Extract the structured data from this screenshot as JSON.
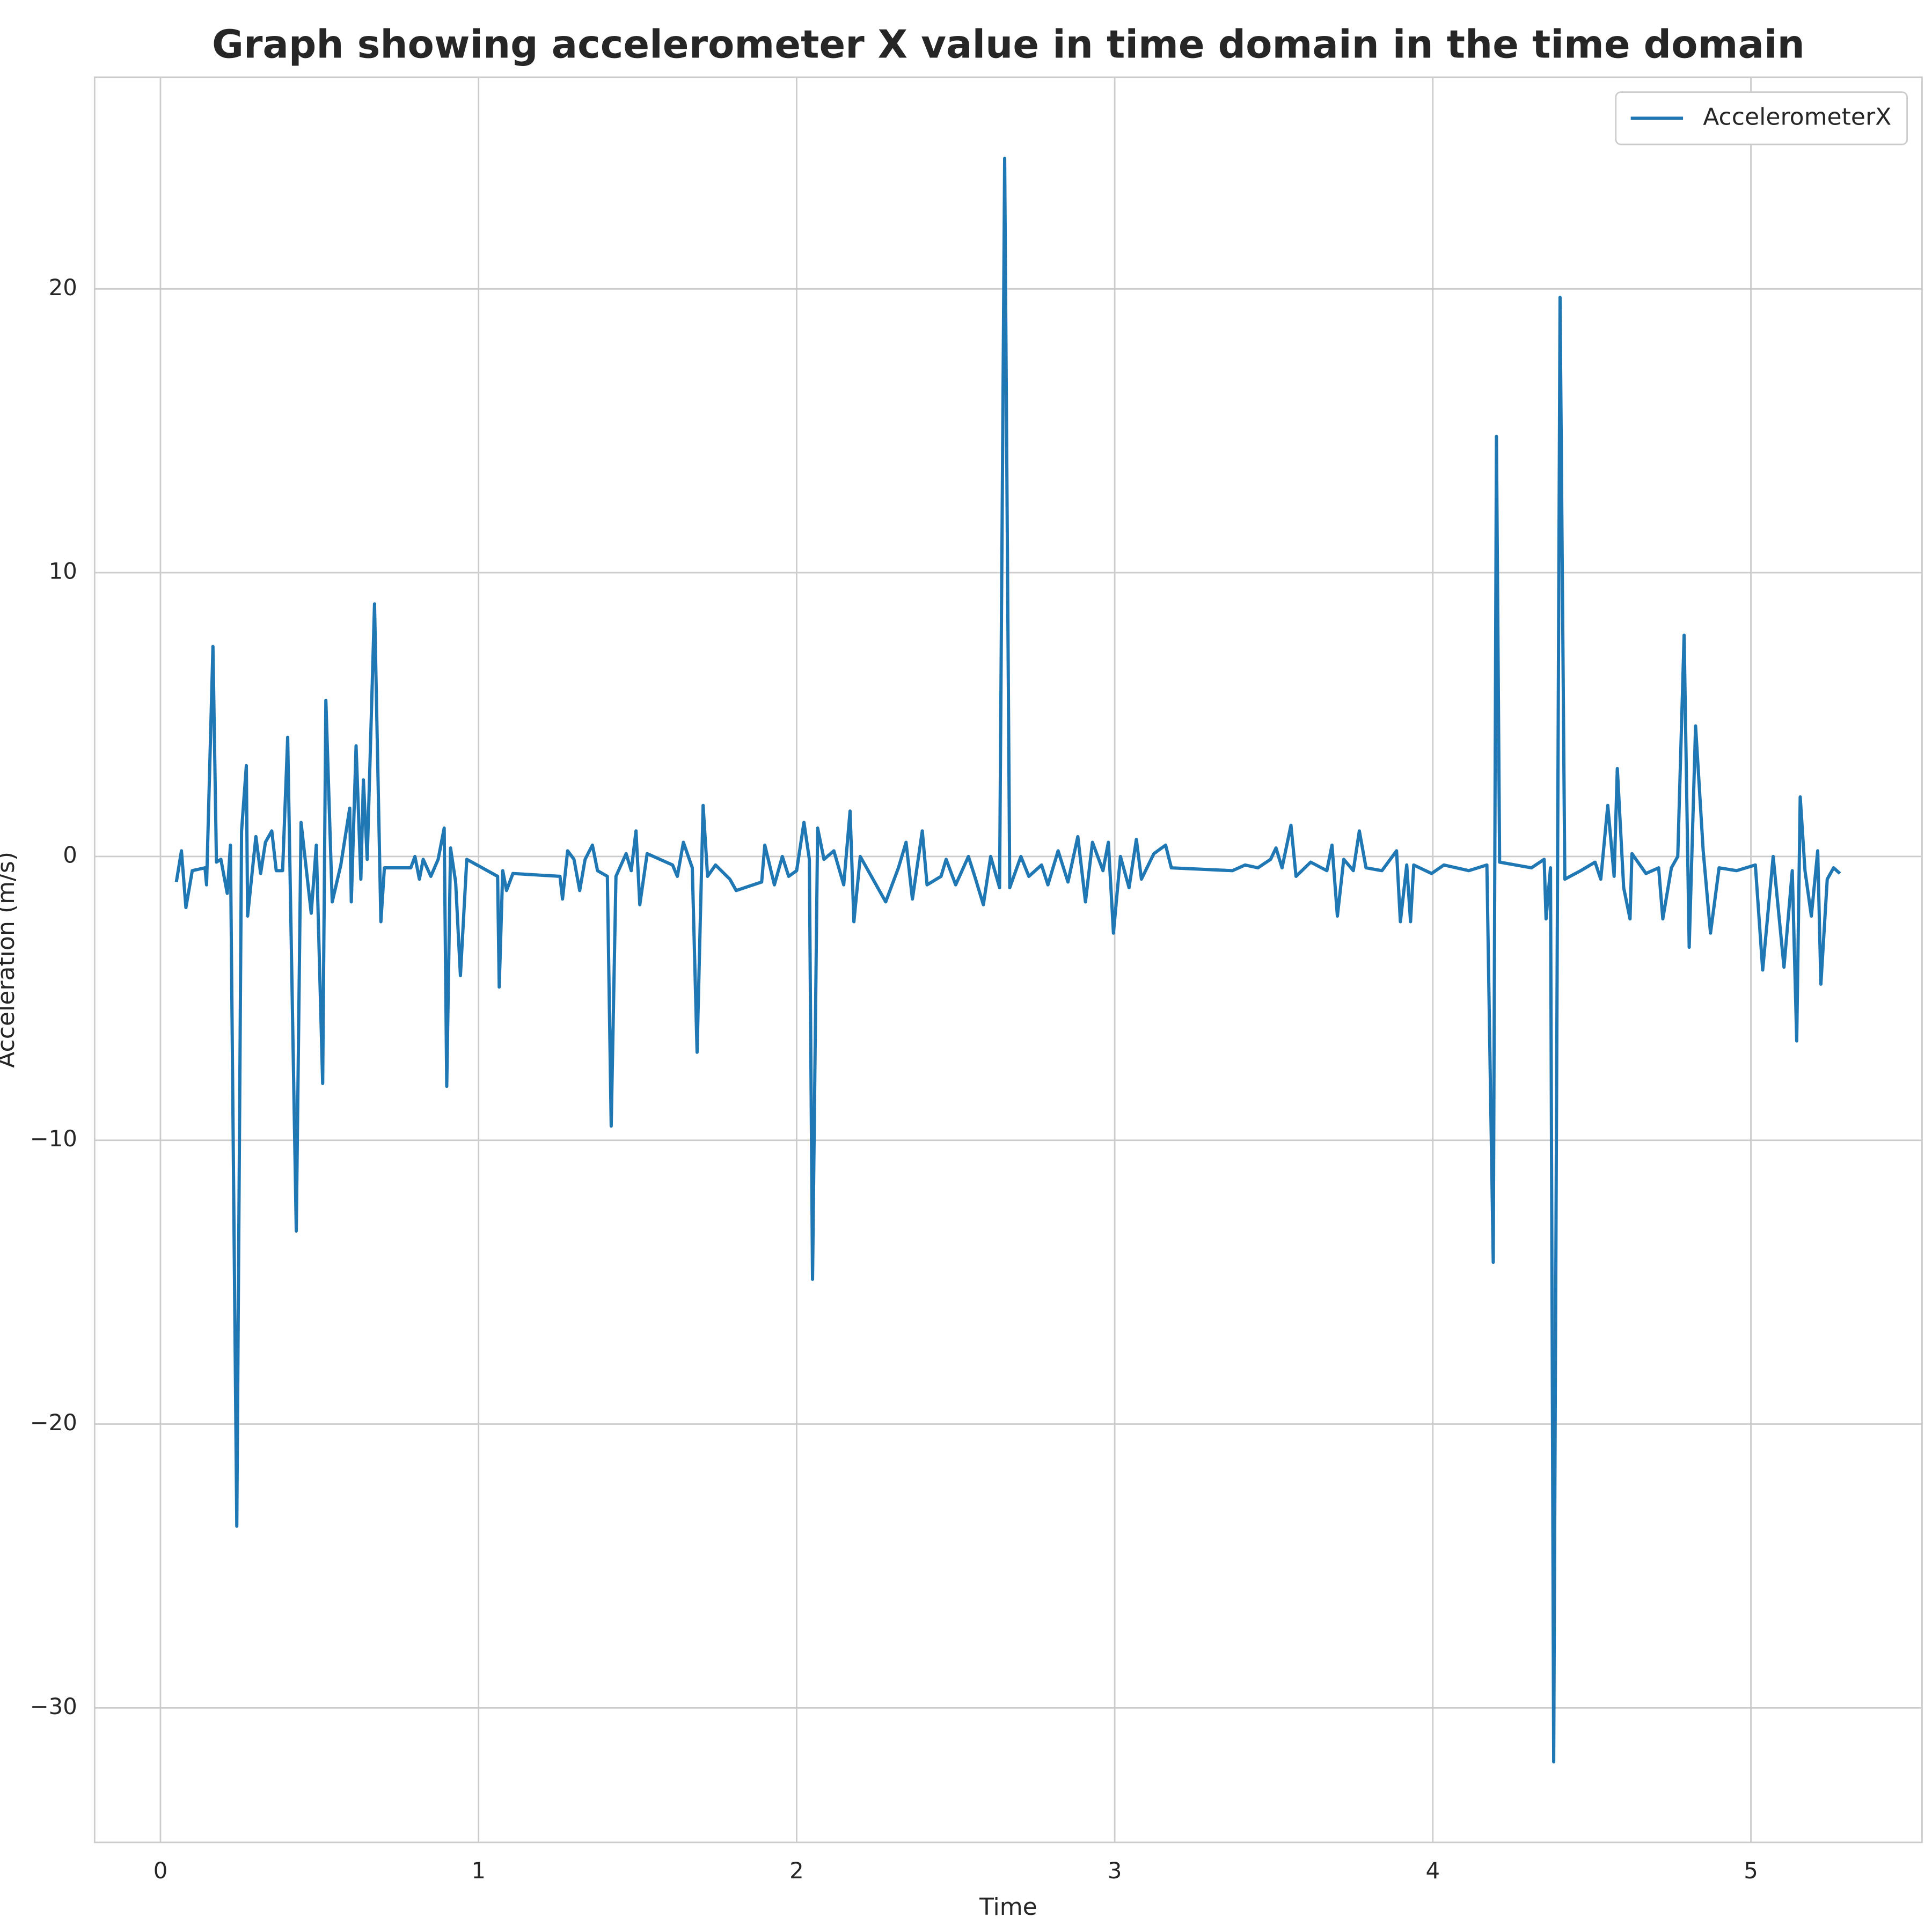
{
  "chart_data": {
    "type": "line",
    "title": "Graph showing accelerometer X value in time domain in the time domain",
    "x_label": "Time",
    "y_label": "Acceleration (m/s)",
    "x": [
      0.05,
      0.066,
      0.08,
      0.1,
      0.14,
      0.145,
      0.165,
      0.176,
      0.19,
      0.21,
      0.22,
      0.24,
      0.255,
      0.27,
      0.274,
      0.3,
      0.315,
      0.33,
      0.35,
      0.364,
      0.384,
      0.4,
      0.427,
      0.442,
      0.474,
      0.49,
      0.51,
      0.52,
      0.54,
      0.567,
      0.595,
      0.6,
      0.615,
      0.63,
      0.638,
      0.65,
      0.673,
      0.693,
      0.704,
      0.787,
      0.8,
      0.814,
      0.826,
      0.85,
      0.873,
      0.892,
      0.9,
      0.912,
      0.928,
      0.943,
      0.963,
      1.06,
      1.065,
      1.076,
      1.088,
      1.108,
      1.256,
      1.264,
      1.28,
      1.3,
      1.318,
      1.335,
      1.358,
      1.374,
      1.405,
      1.417,
      1.432,
      1.464,
      1.48,
      1.495,
      1.507,
      1.53,
      1.61,
      1.625,
      1.644,
      1.672,
      1.687,
      1.706,
      1.72,
      1.745,
      1.772,
      1.79,
      1.81,
      1.89,
      1.9,
      1.93,
      1.955,
      1.975,
      2.0,
      2.023,
      2.04,
      2.05,
      2.066,
      2.086,
      2.117,
      2.148,
      2.168,
      2.18,
      2.2,
      2.28,
      2.32,
      2.344,
      2.364,
      2.395,
      2.41,
      2.454,
      2.47,
      2.5,
      2.54,
      2.56,
      2.587,
      2.61,
      2.638,
      2.654,
      2.67,
      2.705,
      2.73,
      2.77,
      2.79,
      2.822,
      2.853,
      2.884,
      2.908,
      2.93,
      2.963,
      2.98,
      2.996,
      3.018,
      3.045,
      3.068,
      3.084,
      3.123,
      3.16,
      3.178,
      3.37,
      3.41,
      3.45,
      3.49,
      3.507,
      3.526,
      3.554,
      3.57,
      3.616,
      3.667,
      3.683,
      3.7,
      3.72,
      3.75,
      3.769,
      3.79,
      3.84,
      3.886,
      3.898,
      3.918,
      3.93,
      3.94,
      3.996,
      4.035,
      4.113,
      4.17,
      4.19,
      4.2,
      4.21,
      4.31,
      4.35,
      4.356,
      4.37,
      4.38,
      4.4,
      4.415,
      4.465,
      4.51,
      4.528,
      4.55,
      4.57,
      4.58,
      4.6,
      4.62,
      4.626,
      4.67,
      4.71,
      4.723,
      4.75,
      4.77,
      4.79,
      4.806,
      4.826,
      4.85,
      4.873,
      4.9,
      4.955,
      5.014,
      5.037,
      5.07,
      5.104,
      5.13,
      5.144,
      5.155,
      5.17,
      5.19,
      5.21,
      5.22,
      5.24,
      5.26,
      5.28
    ],
    "series": [
      {
        "name": "AccelerometerX",
        "color": "#1f77b4",
        "values": [
          -0.9,
          0.2,
          -1.8,
          -0.5,
          -0.4,
          -1.0,
          7.4,
          -0.2,
          -0.1,
          -1.3,
          0.4,
          -23.6,
          0.9,
          3.2,
          -2.1,
          0.7,
          -0.6,
          0.5,
          0.9,
          -0.5,
          -0.5,
          4.2,
          -13.2,
          1.2,
          -2.0,
          0.4,
          -8.0,
          5.5,
          -1.6,
          -0.3,
          1.7,
          -1.6,
          3.9,
          -0.8,
          2.7,
          -0.1,
          8.9,
          -2.3,
          -0.4,
          -0.4,
          0.0,
          -0.8,
          -0.1,
          -0.7,
          -0.1,
          1.0,
          -8.1,
          0.3,
          -0.9,
          -4.2,
          -0.1,
          -0.7,
          -4.6,
          -0.5,
          -1.2,
          -0.6,
          -0.7,
          -1.5,
          0.2,
          -0.1,
          -1.2,
          -0.1,
          0.4,
          -0.5,
          -0.7,
          -9.5,
          -0.7,
          0.1,
          -0.5,
          0.9,
          -1.7,
          0.1,
          -0.3,
          -0.7,
          0.5,
          -0.4,
          -6.9,
          1.8,
          -0.7,
          -0.3,
          -0.6,
          -0.8,
          -1.2,
          -0.9,
          0.4,
          -1.0,
          0.0,
          -0.7,
          -0.5,
          1.2,
          -0.1,
          -14.9,
          1.0,
          -0.1,
          0.2,
          -1.0,
          1.6,
          -2.3,
          0.0,
          -1.6,
          -0.4,
          0.5,
          -1.5,
          0.9,
          -1.0,
          -0.7,
          -0.1,
          -1.0,
          0.0,
          -0.7,
          -1.7,
          0.0,
          -1.1,
          24.6,
          -1.1,
          0.0,
          -0.7,
          -0.3,
          -1.0,
          0.2,
          -0.9,
          0.7,
          -1.6,
          0.5,
          -0.5,
          0.5,
          -2.7,
          0.0,
          -1.1,
          0.6,
          -0.8,
          0.1,
          0.4,
          -0.4,
          -0.5,
          -0.3,
          -0.4,
          -0.1,
          0.3,
          -0.4,
          1.1,
          -0.7,
          -0.2,
          -0.5,
          0.4,
          -2.1,
          -0.1,
          -0.5,
          0.9,
          -0.4,
          -0.5,
          0.2,
          -2.3,
          -0.3,
          -2.3,
          -0.3,
          -0.6,
          -0.3,
          -0.5,
          -0.3,
          -14.3,
          14.8,
          -0.2,
          -0.4,
          -0.1,
          -2.2,
          -0.4,
          -31.9,
          19.7,
          -0.8,
          -0.5,
          -0.2,
          -0.8,
          1.8,
          -0.7,
          3.1,
          -1.1,
          -2.2,
          0.1,
          -0.6,
          -0.4,
          -2.2,
          -0.4,
          0.0,
          7.8,
          -3.2,
          4.6,
          0.2,
          -2.7,
          -0.4,
          -0.5,
          -0.3,
          -4.0,
          0.0,
          -3.9,
          -0.5,
          -6.5,
          2.1,
          -0.5,
          -2.1,
          0.2,
          -4.5,
          -0.8,
          -0.4,
          -0.6
        ]
      }
    ],
    "xlim": [
      -0.207,
      5.538
    ],
    "ylim": [
      -34.74,
      27.46
    ],
    "xticks": [
      0,
      1,
      2,
      3,
      4,
      5
    ],
    "yticks": [
      {
        "value": -30,
        "label": "−30"
      },
      {
        "value": -20,
        "label": "−20"
      },
      {
        "value": -10,
        "label": "−10"
      },
      0,
      10,
      20
    ],
    "grid": true,
    "legend": "upper right"
  }
}
